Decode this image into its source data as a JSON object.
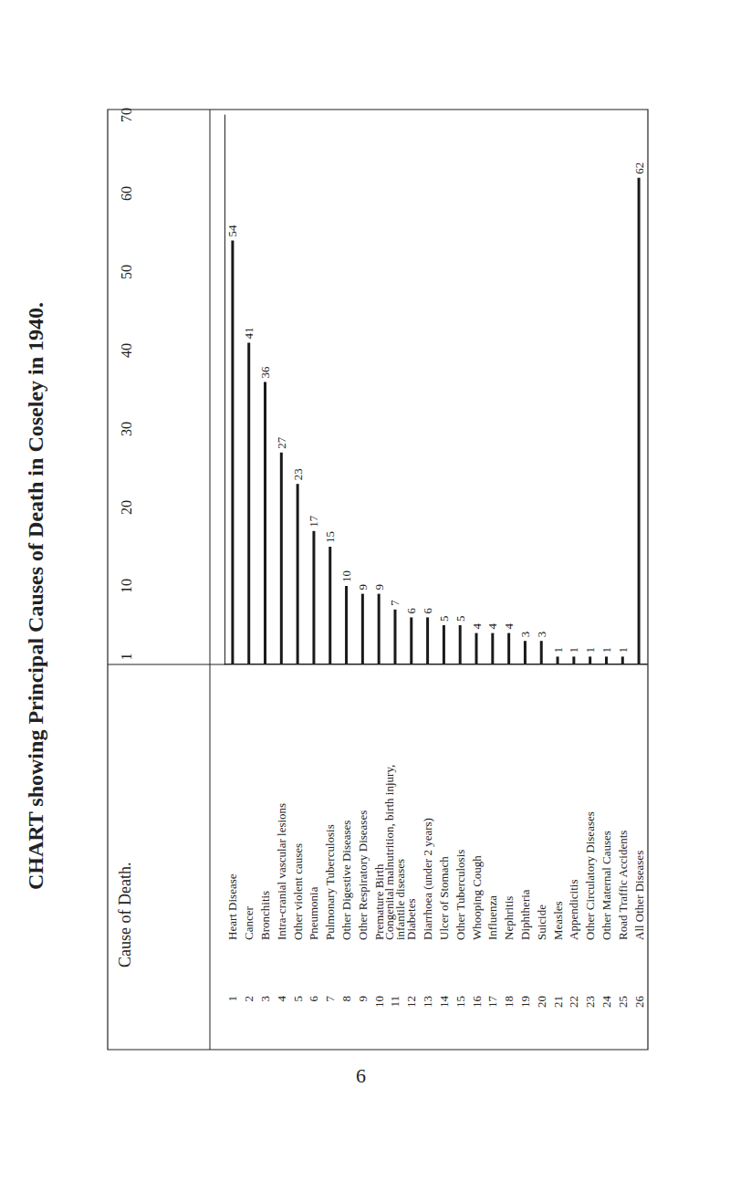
{
  "page_number": "6",
  "chart_data": {
    "type": "bar",
    "orientation": "horizontal",
    "title": "CHART showing Principal Causes of Death in Coseley in 1940.",
    "category_header": "Cause of Death.",
    "row_numbers": [
      1,
      2,
      3,
      4,
      5,
      6,
      7,
      8,
      9,
      10,
      11,
      12,
      13,
      14,
      15,
      16,
      17,
      18,
      19,
      20,
      21,
      22,
      23,
      24,
      25,
      26
    ],
    "categories": [
      "Heart Disease",
      "Cancer",
      "Bronchitis",
      "Intra-cranial vascular lesions",
      "Other violent causes",
      "Pneumonia",
      "Pulmonary Tuberculosis",
      "Other Digestive Diseases",
      "Other Respiratory Diseases",
      "Premature Birth",
      "Congenital malnutrition, birth injury,\ninfantile diseases",
      "Diabetes",
      "Diarrhoea (under 2 years)",
      "Ulcer of Stomach",
      "Other Tuberculosis",
      "Whooping Cough",
      "Influenza",
      "Nephritis",
      "Diphtheria",
      "Suicide",
      "Measles",
      "Appendicitis",
      "Other Circulatory Diseases",
      "Other Maternal Causes",
      "Road Traffic Accidents",
      "All Other Diseases"
    ],
    "values": [
      54,
      41,
      36,
      27,
      23,
      17,
      15,
      10,
      9,
      9,
      7,
      6,
      6,
      5,
      5,
      4,
      4,
      4,
      3,
      3,
      1,
      1,
      1,
      1,
      1,
      62
    ],
    "color": "#1a1a1a",
    "xlim": [
      0,
      70
    ],
    "xticks": [
      1,
      10,
      20,
      30,
      40,
      50,
      60,
      70
    ],
    "grid": false,
    "data_labels": true
  }
}
